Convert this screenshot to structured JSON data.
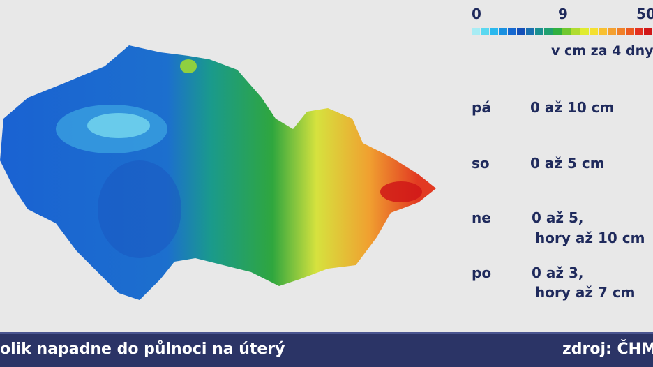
{
  "legend": {
    "ticks": [
      "0",
      "9",
      "50"
    ],
    "unit": "v cm za 4 dny"
  },
  "forecast": [
    {
      "day": "pá",
      "lines": [
        "0 až 10 cm"
      ]
    },
    {
      "day": "so",
      "lines": [
        "0 až 5 cm"
      ]
    },
    {
      "day": "ne",
      "lines": [
        "0 až 5,",
        "hory až 10 cm"
      ]
    },
    {
      "day": "po",
      "lines": [
        "0 až 3,",
        "hory až 7 cm"
      ]
    }
  ],
  "footer": {
    "title": "olik napadne do půlnoci na úterý",
    "source": "zdroj: ČHM"
  }
}
